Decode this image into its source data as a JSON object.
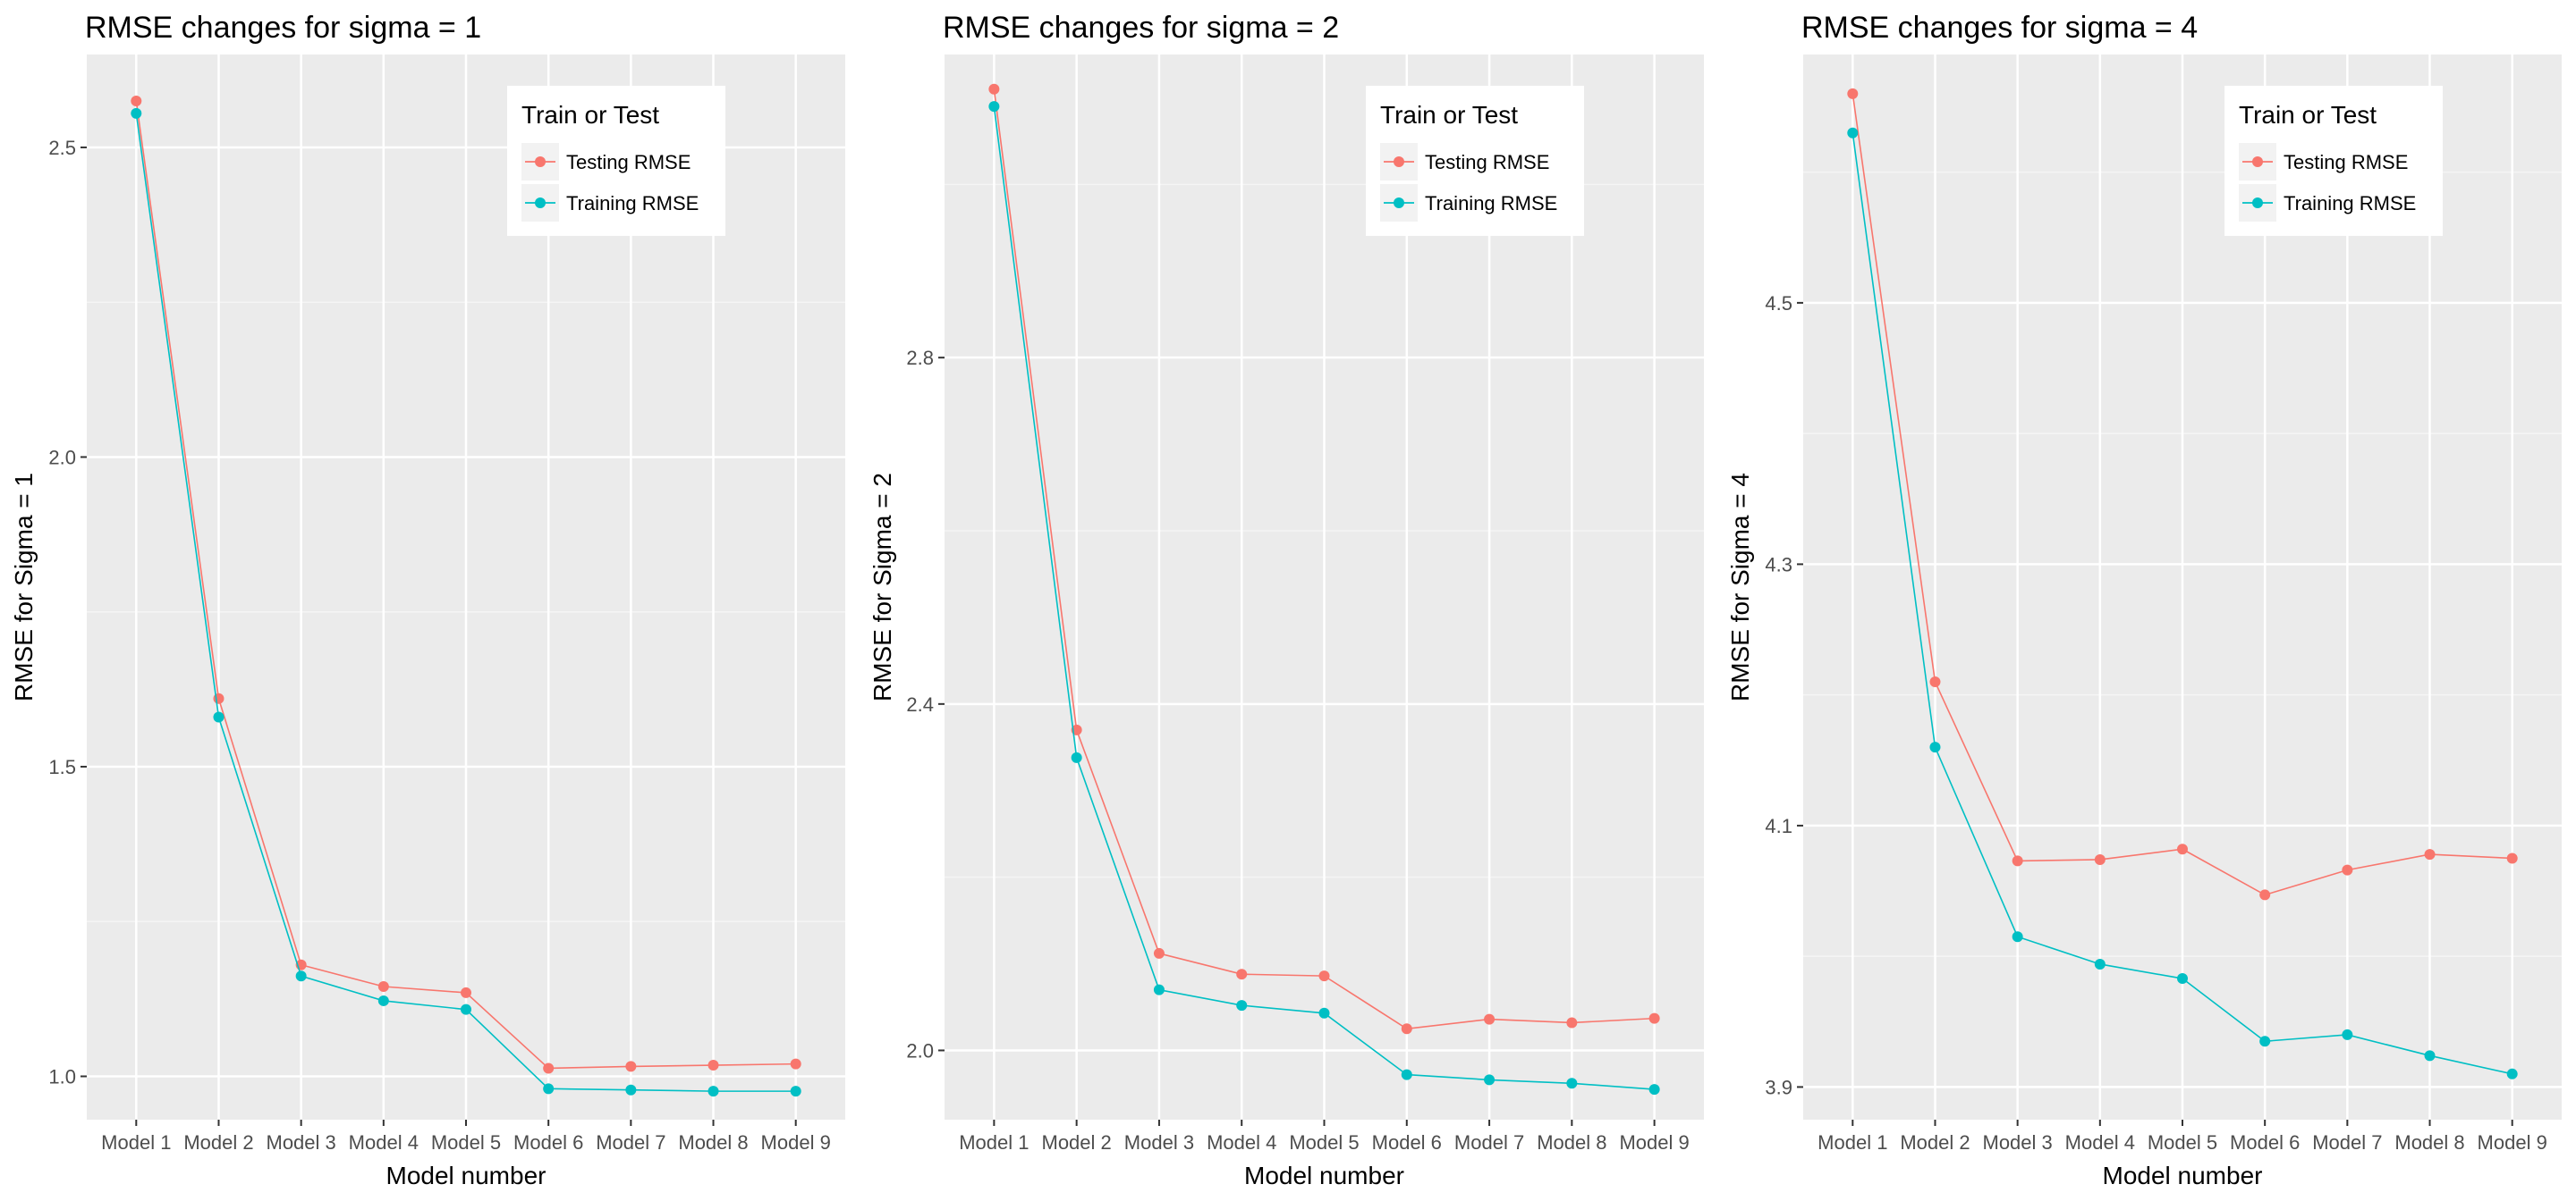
{
  "colors": {
    "panel_background": "#ebebeb",
    "grid_major": "#ffffff",
    "testing": "#f8766d",
    "training": "#00bfc4"
  },
  "chart_data": [
    {
      "type": "line",
      "title": "RMSE changes for sigma = 1",
      "xlabel": "Model number",
      "ylabel": "RMSE for Sigma = 1",
      "categories": [
        "Model 1",
        "Model 2",
        "Model 3",
        "Model 4",
        "Model 5",
        "Model 6",
        "Model 7",
        "Model 8",
        "Model 9"
      ],
      "yticks": [
        1.0,
        1.5,
        2.0,
        2.5
      ],
      "ytick_labels": [
        "1.0",
        "1.5",
        "2.0",
        "2.5"
      ],
      "ylim": [
        0.93,
        2.65
      ],
      "legend": {
        "title": "Train or Test",
        "position": "top-right"
      },
      "series": [
        {
          "name": "Testing RMSE",
          "color": "#f8766d",
          "values": [
            2.575,
            1.61,
            1.18,
            1.145,
            1.135,
            1.013,
            1.016,
            1.018,
            1.02
          ]
        },
        {
          "name": "Training RMSE",
          "color": "#00bfc4",
          "values": [
            2.555,
            1.58,
            1.162,
            1.122,
            1.108,
            0.98,
            0.978,
            0.976,
            0.976
          ]
        }
      ]
    },
    {
      "type": "line",
      "title": "RMSE changes for sigma = 2",
      "xlabel": "Model number",
      "ylabel": "RMSE for Sigma = 2",
      "categories": [
        "Model 1",
        "Model 2",
        "Model 3",
        "Model 4",
        "Model 5",
        "Model 6",
        "Model 7",
        "Model 8",
        "Model 9"
      ],
      "yticks": [
        2.0,
        2.4,
        2.8
      ],
      "ytick_labels": [
        "2.0",
        "2.4",
        "2.8"
      ],
      "ylim": [
        1.92,
        3.15
      ],
      "legend": {
        "title": "Train or Test",
        "position": "top-right"
      },
      "series": [
        {
          "name": "Testing RMSE",
          "color": "#f8766d",
          "values": [
            3.11,
            2.37,
            2.112,
            2.088,
            2.086,
            2.025,
            2.036,
            2.032,
            2.037
          ]
        },
        {
          "name": "Training RMSE",
          "color": "#00bfc4",
          "values": [
            3.09,
            2.338,
            2.07,
            2.052,
            2.043,
            1.972,
            1.966,
            1.962,
            1.955
          ]
        }
      ]
    },
    {
      "type": "line",
      "title": "RMSE changes for sigma = 4",
      "xlabel": "Model number",
      "ylabel": "RMSE for Sigma = 4",
      "categories": [
        "Model 1",
        "Model 2",
        "Model 3",
        "Model 4",
        "Model 5",
        "Model 6",
        "Model 7",
        "Model 8",
        "Model 9"
      ],
      "yticks": [
        3.9,
        4.1,
        4.3,
        4.5
      ],
      "ytick_labels": [
        "3.9",
        "4.1",
        "4.3",
        "4.5"
      ],
      "ylim": [
        3.875,
        4.69
      ],
      "legend": {
        "title": "Train or Test",
        "position": "top-right"
      },
      "series": [
        {
          "name": "Testing RMSE",
          "color": "#f8766d",
          "values": [
            4.66,
            4.21,
            4.073,
            4.074,
            4.082,
            4.047,
            4.066,
            4.078,
            4.075
          ]
        },
        {
          "name": "Training RMSE",
          "color": "#00bfc4",
          "values": [
            4.63,
            4.16,
            4.015,
            3.994,
            3.983,
            3.935,
            3.94,
            3.924,
            3.91
          ]
        }
      ]
    }
  ]
}
